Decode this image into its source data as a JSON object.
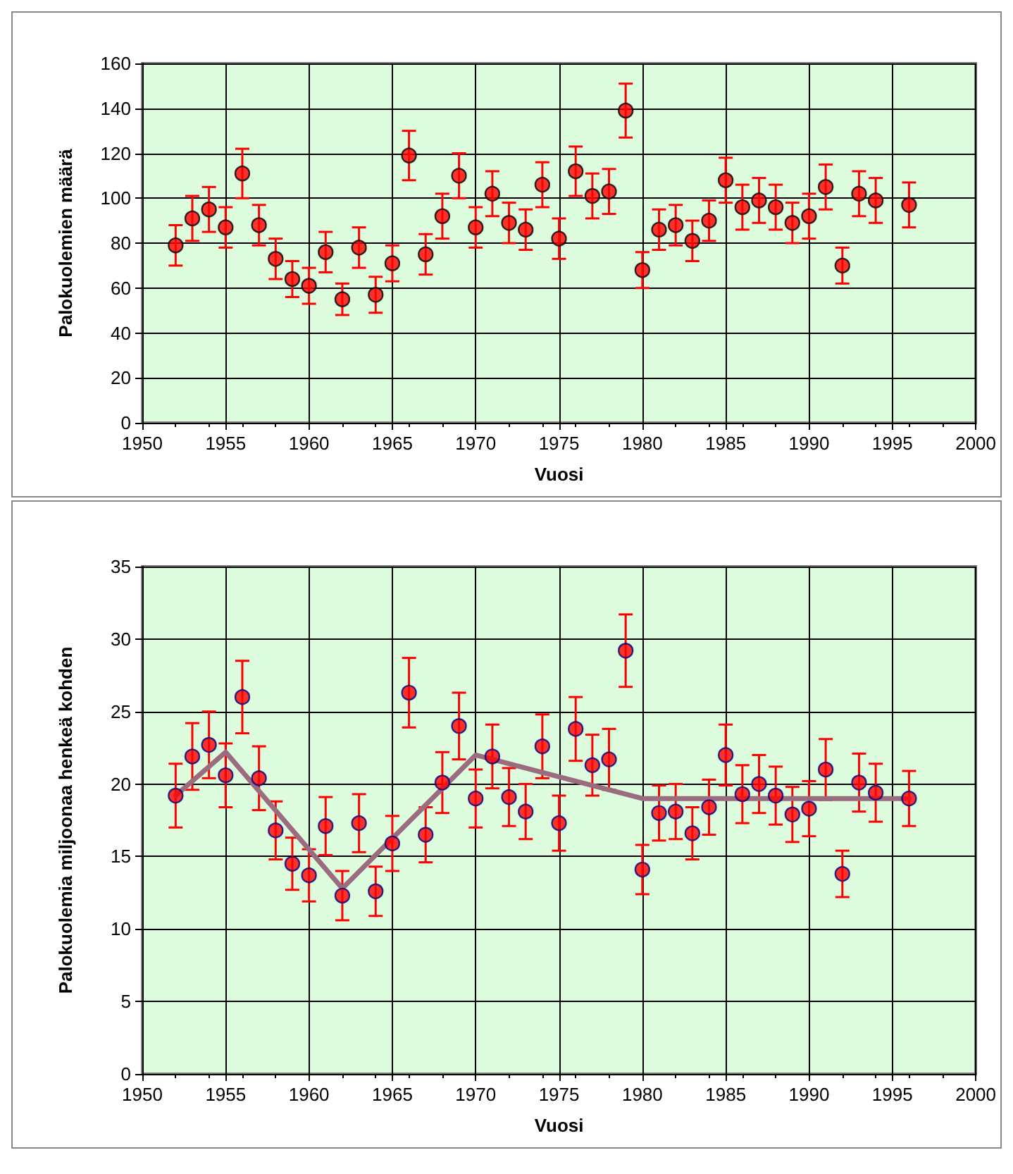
{
  "chart_data": [
    {
      "type": "scatter",
      "xlabel": "Vuosi",
      "ylabel": "Palokuolemien määrä",
      "xlim": [
        1950,
        2000
      ],
      "xticks": [
        1950,
        1955,
        1960,
        1965,
        1970,
        1975,
        1980,
        1985,
        1990,
        1995,
        2000
      ],
      "ylim": [
        0,
        160
      ],
      "yticks": [
        0,
        20,
        40,
        60,
        80,
        100,
        120,
        140,
        160
      ],
      "grid": true,
      "legend": false,
      "marker": "circle",
      "x": [
        1952,
        1953,
        1954,
        1955,
        1956,
        1957,
        1958,
        1959,
        1960,
        1961,
        1962,
        1963,
        1964,
        1965,
        1966,
        1967,
        1968,
        1969,
        1970,
        1971,
        1972,
        1973,
        1974,
        1975,
        1976,
        1977,
        1978,
        1979,
        1980,
        1981,
        1982,
        1983,
        1984,
        1985,
        1986,
        1987,
        1988,
        1989,
        1990,
        1991,
        1992,
        1993,
        1994,
        1996
      ],
      "series": [
        {
          "color": "#ff0000",
          "values": [
            79,
            91,
            95,
            87,
            111,
            88,
            73,
            64,
            61,
            76,
            55,
            78,
            57,
            71,
            119,
            75,
            92,
            110,
            87,
            102,
            89,
            86,
            106,
            82,
            112,
            101,
            103,
            139,
            68,
            86,
            88,
            81,
            90,
            108,
            96,
            99,
            96,
            89,
            92,
            105,
            70,
            102,
            99,
            97
          ],
          "errors": [
            9,
            10,
            10,
            9,
            11,
            9,
            9,
            8,
            8,
            9,
            7,
            9,
            8,
            8,
            11,
            9,
            10,
            10,
            9,
            10,
            9,
            9,
            10,
            9,
            11,
            10,
            10,
            12,
            8,
            9,
            9,
            9,
            9,
            10,
            10,
            10,
            10,
            9,
            10,
            10,
            8,
            10,
            10,
            10
          ]
        }
      ]
    },
    {
      "type": "scatter",
      "xlabel": "Vuosi",
      "ylabel": "Palokuolemia miljoonaa henkeä kohden",
      "xlim": [
        1950,
        2000
      ],
      "xticks": [
        1950,
        1955,
        1960,
        1965,
        1970,
        1975,
        1980,
        1985,
        1990,
        1995,
        2000
      ],
      "ylim": [
        0,
        35
      ],
      "yticks": [
        0,
        5,
        10,
        15,
        20,
        25,
        30,
        35
      ],
      "grid": true,
      "legend": false,
      "marker": "circle",
      "x": [
        1952,
        1953,
        1954,
        1955,
        1956,
        1957,
        1958,
        1959,
        1960,
        1961,
        1962,
        1963,
        1964,
        1965,
        1966,
        1967,
        1968,
        1969,
        1970,
        1971,
        1972,
        1973,
        1974,
        1975,
        1976,
        1977,
        1978,
        1979,
        1980,
        1981,
        1982,
        1983,
        1984,
        1985,
        1986,
        1987,
        1988,
        1989,
        1990,
        1991,
        1992,
        1993,
        1994,
        1996
      ],
      "series": [
        {
          "color": "#ff0000",
          "values": [
            19.2,
            21.9,
            22.7,
            20.6,
            26.0,
            20.4,
            16.8,
            14.5,
            13.7,
            17.1,
            12.3,
            17.3,
            12.6,
            15.9,
            26.3,
            16.5,
            20.1,
            24.0,
            19.0,
            21.9,
            19.1,
            18.1,
            22.6,
            17.3,
            23.8,
            21.3,
            21.7,
            29.2,
            14.1,
            18.0,
            18.1,
            16.6,
            18.4,
            22.0,
            19.3,
            20.0,
            19.2,
            17.9,
            18.3,
            21.0,
            13.8,
            20.1,
            19.4,
            19.0
          ],
          "errors": [
            2.2,
            2.3,
            2.3,
            2.2,
            2.5,
            2.2,
            2.0,
            1.8,
            1.8,
            2.0,
            1.7,
            2.0,
            1.7,
            1.9,
            2.4,
            1.9,
            2.1,
            2.3,
            2.0,
            2.2,
            2.0,
            1.9,
            2.2,
            1.9,
            2.2,
            2.1,
            2.1,
            2.5,
            1.7,
            1.9,
            1.9,
            1.8,
            1.9,
            2.1,
            2.0,
            2.0,
            2.0,
            1.9,
            1.9,
            2.1,
            1.6,
            2.0,
            2.0,
            1.9
          ]
        },
        {
          "type": "line",
          "color": "#9b6b80",
          "x": [
            1952,
            1955,
            1962,
            1970,
            1980,
            1996
          ],
          "values": [
            19.2,
            22.2,
            12.8,
            22.0,
            19.0,
            19.0
          ],
          "marker": "none"
        }
      ]
    }
  ]
}
